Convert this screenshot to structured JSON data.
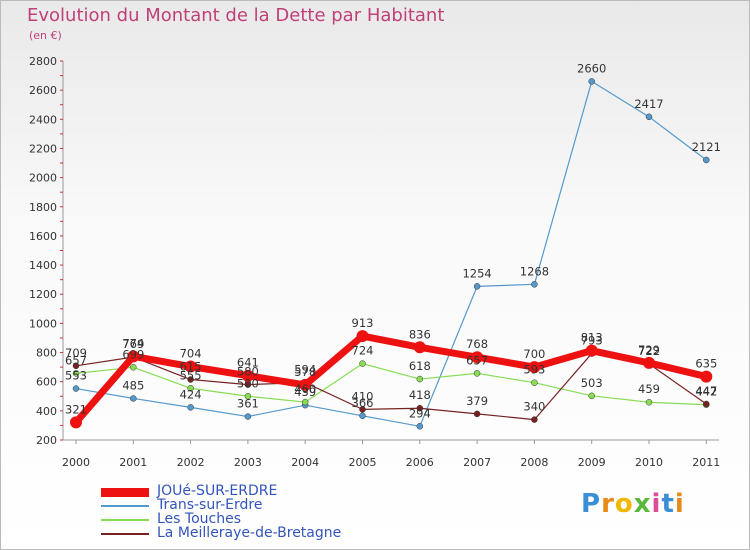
{
  "chart_data": {
    "type": "line",
    "title": "Evolution du Montant de la Dette par Habitant",
    "subtitle": "(en €)",
    "categories": [
      "2000",
      "2001",
      "2002",
      "2003",
      "2004",
      "2005",
      "2006",
      "2007",
      "2008",
      "2009",
      "2010",
      "2011"
    ],
    "yticks": [
      200,
      400,
      600,
      800,
      1000,
      1200,
      1400,
      1600,
      1800,
      2000,
      2200,
      2400,
      2600,
      2800
    ],
    "ylim": [
      200,
      2800
    ],
    "grid": false,
    "legend_position": "bottom-left",
    "series": [
      {
        "name": "JOUé-SUR-ERDRE",
        "color": "#ee1111",
        "values": [
          321,
          774,
          704,
          641,
          578,
          913,
          836,
          768,
          700,
          813,
          729,
          635
        ],
        "width": 7
      },
      {
        "name": "Trans-sur-Erdre",
        "color": "#5599cc",
        "values": [
          553,
          485,
          424,
          361,
          439,
          366,
          294,
          1254,
          1268,
          2660,
          2417,
          2121
        ],
        "width": 1.2
      },
      {
        "name": "Les Touches",
        "color": "#88dd55",
        "values": [
          657,
          699,
          555,
          500,
          460,
          724,
          618,
          657,
          593,
          503,
          459,
          442
        ],
        "width": 1.2
      },
      {
        "name": "La Meilleraye-de-Bretagne",
        "color": "#772222",
        "values": [
          709,
          769,
          615,
          580,
          594,
          410,
          418,
          379,
          340,
          793,
          722,
          447
        ],
        "width": 1.2
      }
    ]
  },
  "logo": {
    "text": "Proxiti"
  }
}
